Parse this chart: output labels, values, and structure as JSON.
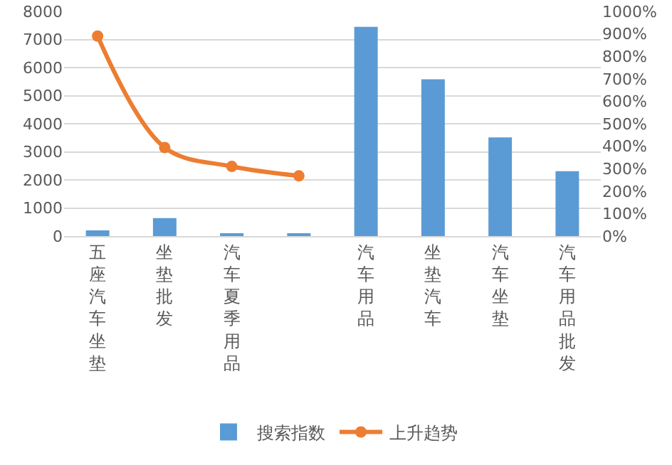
{
  "chart_data": {
    "type": "bar",
    "categories": [
      "五座汽车坐垫",
      "坐垫批发",
      "汽车夏季用品",
      null,
      "汽车用品",
      "坐垫汽车",
      "汽车坐垫",
      "汽车用品批发"
    ],
    "series": [
      {
        "name": "搜索指数",
        "color": "#5b9bd5",
        "values": [
          200,
          640,
          60,
          60,
          7450,
          5580,
          3510,
          2310
        ]
      },
      {
        "name": "上升趋势",
        "type": "line",
        "axis": "y2",
        "color": "#ed7d31",
        "marker": "circle",
        "values": [
          890,
          394,
          310,
          268,
          null,
          null,
          null,
          null
        ]
      }
    ],
    "ylim": [
      0,
      8000
    ],
    "yticks": [
      0,
      1000,
      2000,
      3000,
      4000,
      5000,
      6000,
      7000,
      8000
    ],
    "y2lim": [
      0,
      1000
    ],
    "y2ticks": [
      {
        "value": 0,
        "label": "0%"
      },
      {
        "value": 100,
        "label": "100%"
      },
      {
        "value": 200,
        "label": "200%"
      },
      {
        "value": 300,
        "label": "300%"
      },
      {
        "value": 400,
        "label": "400%"
      },
      {
        "value": 500,
        "label": "500%"
      },
      {
        "value": 600,
        "label": "600%"
      },
      {
        "value": 700,
        "label": "700%"
      },
      {
        "value": 800,
        "label": "800%"
      },
      {
        "value": 900,
        "label": "900%"
      },
      {
        "value": 1000,
        "label": "1000%"
      }
    ],
    "grid": "y",
    "legend": "bottom"
  }
}
